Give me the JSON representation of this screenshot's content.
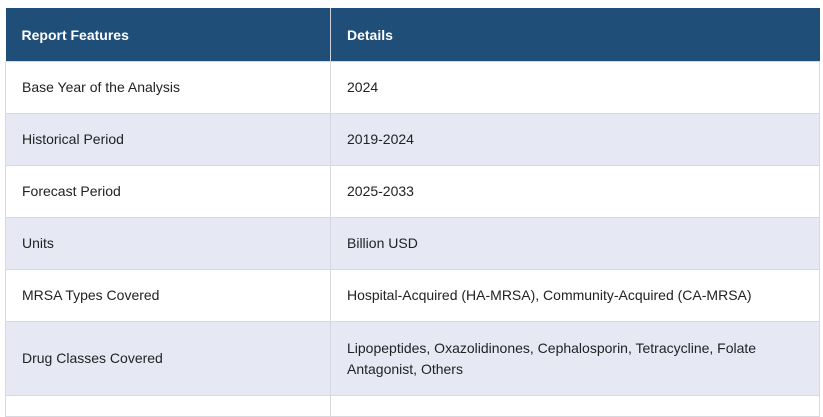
{
  "table": {
    "headers": [
      "Report Features",
      "Details"
    ],
    "rows": [
      {
        "feature": "Base Year of the Analysis",
        "details": "2024"
      },
      {
        "feature": "Historical Period",
        "details": "2019-2024"
      },
      {
        "feature": "Forecast Period",
        "details": "2025-2033"
      },
      {
        "feature": "Units",
        "details": "Billion USD"
      },
      {
        "feature": "MRSA Types Covered",
        "details": "Hospital-Acquired (HA-MRSA), Community-Acquired (CA-MRSA)"
      },
      {
        "feature": "Drug Classes Covered",
        "details": "Lipopeptides, Oxazolidinones, Cephalosporin, Tetracycline, Folate Antagonist, Others"
      }
    ]
  },
  "colors": {
    "header_bg": "#1f4e79",
    "stripe": "#e6e8f4",
    "border": "#d6d9e0"
  }
}
